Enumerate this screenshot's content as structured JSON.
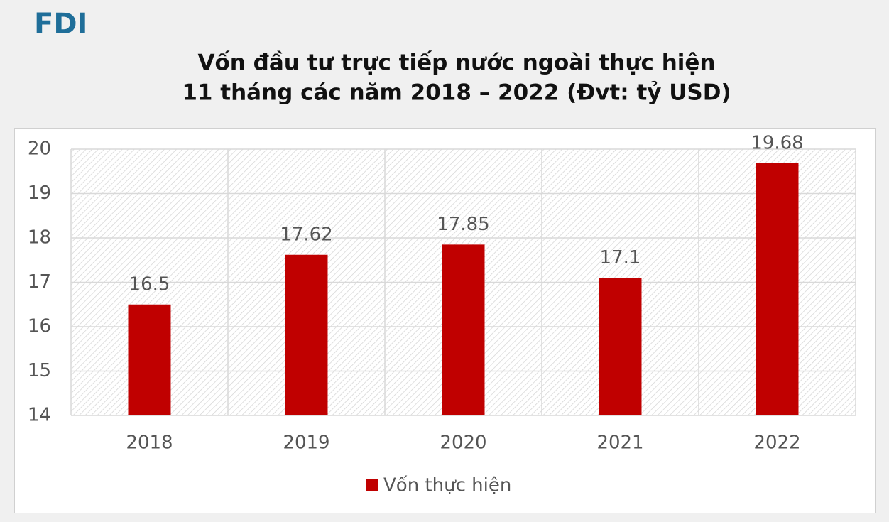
{
  "brand": "FDI",
  "chart_data": {
    "type": "bar",
    "title": [
      "Vốn đầu tư trực tiếp nước ngoài thực hiện",
      "11 tháng các năm 2018 – 2022 (Đvt: tỷ USD)"
    ],
    "categories": [
      "2018",
      "2019",
      "2020",
      "2021",
      "2022"
    ],
    "series": [
      {
        "name": "Vốn thực hiện",
        "color": "#c00000",
        "values": [
          16.5,
          17.62,
          17.85,
          17.1,
          19.68
        ]
      }
    ],
    "ylim": [
      14,
      20
    ],
    "yticks": [
      14,
      15,
      16,
      17,
      18,
      19,
      20
    ],
    "grid": true,
    "legend": "bottom"
  }
}
